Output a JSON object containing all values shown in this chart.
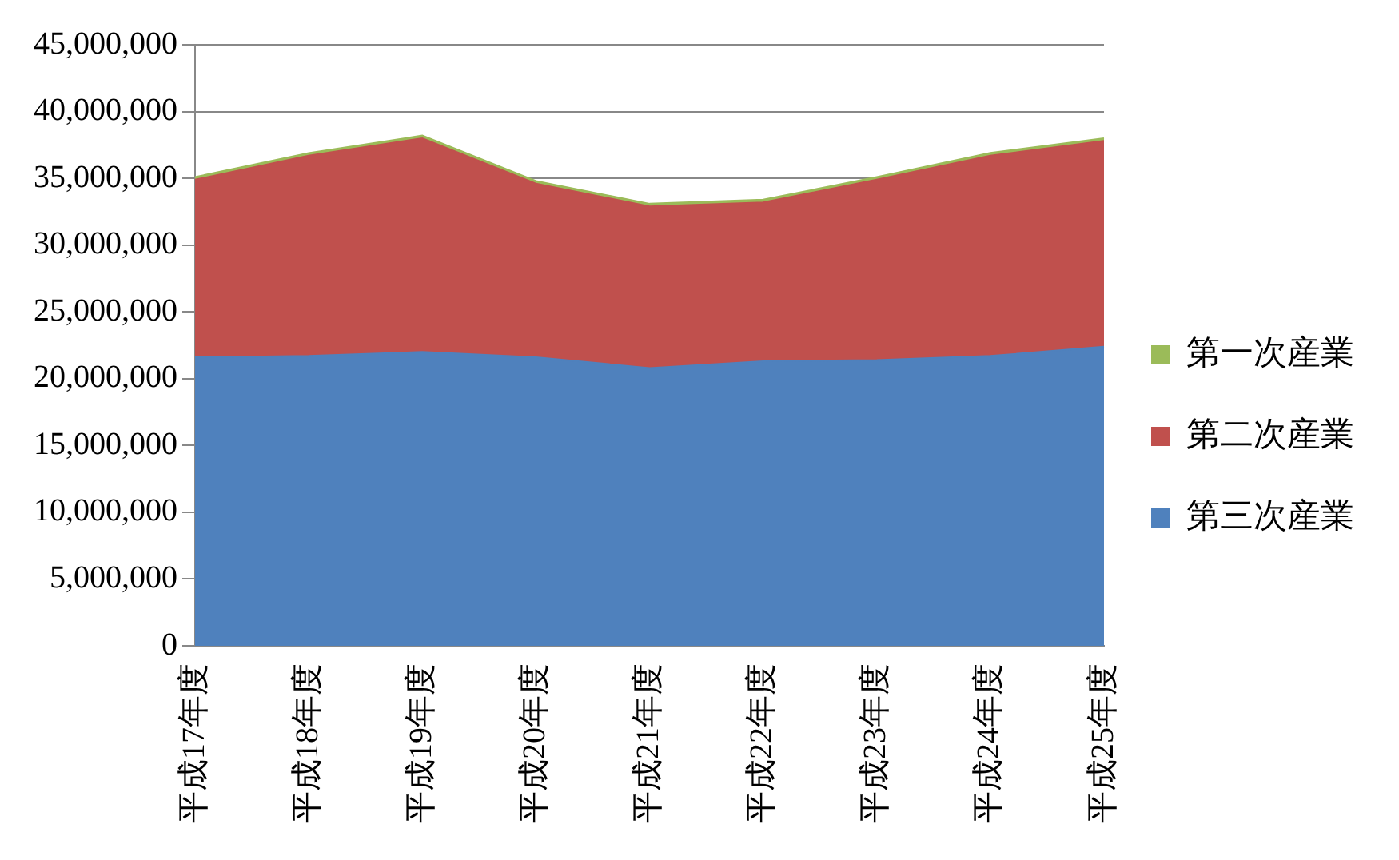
{
  "chart_data": {
    "type": "area",
    "stacked": true,
    "categories": [
      "平成17年度",
      "平成18年度",
      "平成19年度",
      "平成20年度",
      "平成21年度",
      "平成22年度",
      "平成23年度",
      "平成24年度",
      "平成25年度"
    ],
    "series": [
      {
        "name": "第三次産業",
        "color": "#4f81bd",
        "values": [
          21600000,
          21700000,
          22000000,
          21600000,
          20800000,
          21300000,
          21400000,
          21700000,
          22400000
        ]
      },
      {
        "name": "第二次産業",
        "color": "#c0504d",
        "values": [
          13300000,
          15000000,
          16000000,
          13000000,
          12100000,
          11900000,
          13500000,
          15000000,
          15400000
        ]
      },
      {
        "name": "第一次産業",
        "color": "#9bbb59",
        "values": [
          200000,
          200000,
          200000,
          200000,
          200000,
          200000,
          200000,
          200000,
          200000
        ]
      }
    ],
    "ylim": [
      0,
      45000000
    ],
    "yticks": [
      0,
      {
        "value": 5000000,
        "label": "5,000,000"
      },
      {
        "value": 10000000,
        "label": "10,000,000"
      },
      {
        "value": 15000000,
        "label": "15,000,000"
      },
      {
        "value": 20000000,
        "label": "20,000,000"
      },
      {
        "value": 25000000,
        "label": "25,000,000"
      },
      {
        "value": 30000000,
        "label": "30,000,000"
      },
      {
        "value": 35000000,
        "label": "35,000,000"
      },
      {
        "value": 40000000,
        "label": "40,000,000"
      },
      {
        "value": 45000000,
        "label": "45,000,000"
      }
    ],
    "grid": "y",
    "legend": "right"
  }
}
